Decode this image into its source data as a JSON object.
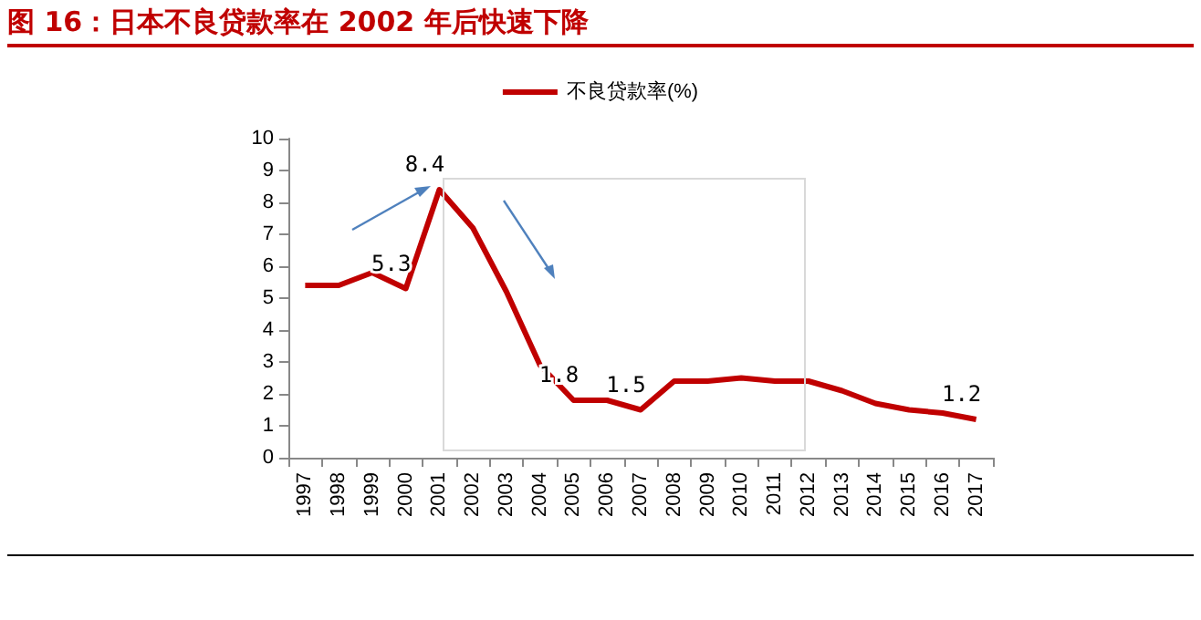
{
  "chart_data": {
    "type": "line",
    "title": "图 16：日本不良贷款率在 2002 年后快速下降",
    "categories": [
      "1997",
      "1998",
      "1999",
      "2000",
      "2001",
      "2002",
      "2003",
      "2004",
      "2005",
      "2006",
      "2007",
      "2008",
      "2009",
      "2010",
      "2011",
      "2012",
      "2013",
      "2014",
      "2015",
      "2016",
      "2017"
    ],
    "series": [
      {
        "name": "不良贷款率(%)",
        "color": "#c00000",
        "values": [
          5.4,
          5.4,
          5.8,
          5.3,
          8.4,
          7.2,
          5.2,
          2.9,
          1.8,
          1.8,
          1.5,
          2.4,
          2.4,
          2.5,
          2.4,
          2.4,
          2.1,
          1.7,
          1.5,
          1.4,
          1.2
        ],
        "value_labels": [
          null,
          null,
          null,
          "5.3",
          "8.4",
          null,
          null,
          null,
          "1.8",
          null,
          "1.5",
          null,
          null,
          null,
          null,
          null,
          null,
          null,
          null,
          null,
          "1.2"
        ]
      }
    ],
    "ylim": [
      0,
      10
    ],
    "yticks": [
      0,
      1,
      2,
      3,
      4,
      5,
      6,
      7,
      8,
      9,
      10
    ],
    "grid": false,
    "legend": "top",
    "marker": "none",
    "line_style": "solid"
  }
}
